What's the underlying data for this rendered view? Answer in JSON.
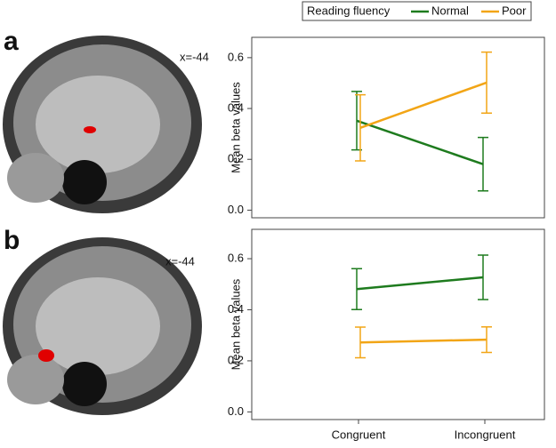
{
  "panels": [
    {
      "label": "a",
      "coordinate": "x=-44"
    },
    {
      "label": "b",
      "coordinate": "x=-44"
    }
  ],
  "chart_data": [
    {
      "type": "line",
      "legend_title": "Reading fluency",
      "y_label": "Mean beta values",
      "ylim": [
        -0.03,
        0.68
      ],
      "yticks": [
        {
          "value": 0,
          "label": "0.0"
        },
        0.2,
        0.4,
        0.6
      ],
      "series": [
        {
          "name": "Normal",
          "color": "#1e7b1e",
          "values": [
            0.352,
            0.181
          ],
          "errors": [
            0.115,
            0.105
          ]
        },
        {
          "name": "Poor",
          "color": "#f2a516",
          "values": [
            0.324,
            0.502
          ],
          "errors": [
            0.13,
            0.12
          ]
        }
      ]
    },
    {
      "type": "line",
      "y_label": "Mean beta values",
      "categories": [
        "Congruent",
        "Incongruent"
      ],
      "ylim": [
        -0.03,
        0.715
      ],
      "yticks": [
        {
          "value": 0,
          "label": "0.0"
        },
        0.2,
        0.4,
        0.6
      ],
      "series": [
        {
          "color": "#1e7b1e",
          "values": [
            0.481,
            0.527
          ],
          "errors": [
            0.08,
            0.087
          ]
        },
        {
          "color": "#f2a516",
          "values": [
            0.272,
            0.283
          ],
          "errors": [
            0.06,
            0.05
          ]
        }
      ]
    }
  ]
}
